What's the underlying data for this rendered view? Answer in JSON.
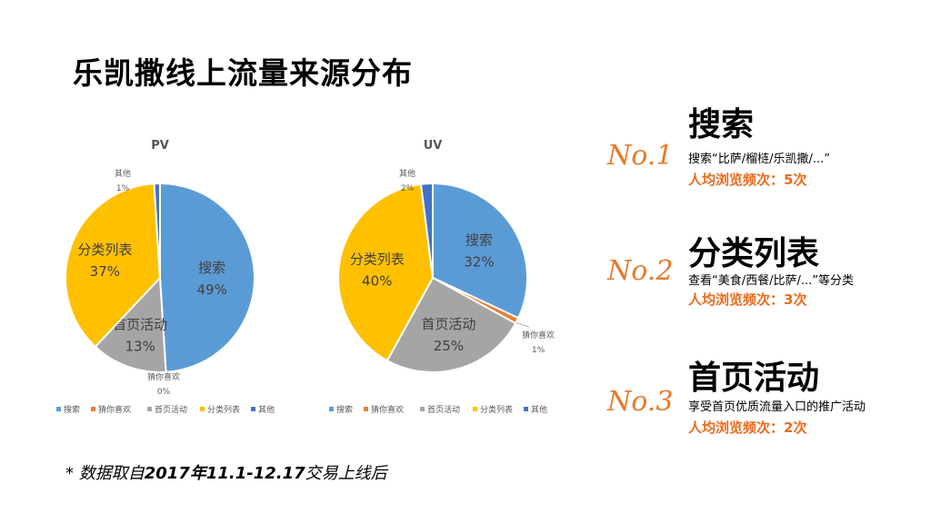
{
  "title": "乐凯撒线上流量来源分布",
  "note": {
    "prefix": "* 数据取自",
    "bold": "2017年11.1-12.17",
    "suffix": "交易上线后"
  },
  "colors": {
    "search": "#5b9bd5",
    "guess": "#ed7d31",
    "home": "#a5a5a5",
    "category": "#ffc000",
    "other": "#4472c4",
    "accent": "#e87a2a"
  },
  "chart_data": [
    {
      "type": "pie",
      "title": "PV",
      "categories": [
        "搜索",
        "猜你喜欢",
        "首页活动",
        "分类列表",
        "其他"
      ],
      "values": [
        49,
        0,
        13,
        37,
        1
      ],
      "labels": [
        "49%",
        "0%",
        "13%",
        "37%",
        "1%"
      ],
      "legend": [
        "搜索",
        "猜你喜欢",
        "首页活动",
        "分类列表",
        "其他"
      ],
      "legend_position": "bottom"
    },
    {
      "type": "pie",
      "title": "UV",
      "categories": [
        "搜索",
        "猜你喜欢",
        "首页活动",
        "分类列表",
        "其他"
      ],
      "values": [
        32,
        1,
        25,
        40,
        2
      ],
      "labels": [
        "32%",
        "1%",
        "25%",
        "40%",
        "2%"
      ],
      "legend": [
        "搜索",
        "猜你喜欢",
        "首页活动",
        "分类列表",
        "其他"
      ],
      "legend_position": "bottom"
    }
  ],
  "ranking": [
    {
      "rank": "No.1",
      "heading": "搜索",
      "desc": "搜索“比萨/榴梿/乐凯撒/...”",
      "freq": "人均浏览频次：5次"
    },
    {
      "rank": "No.2",
      "heading": "分类列表",
      "desc": "查看“美食/西餐/比萨/...”等分类",
      "freq": "人均浏览频次：3次"
    },
    {
      "rank": "No.3",
      "heading": "首页活动",
      "desc": "享受首页优质流量入口的推广活动",
      "freq": "人均浏览频次：2次"
    }
  ]
}
